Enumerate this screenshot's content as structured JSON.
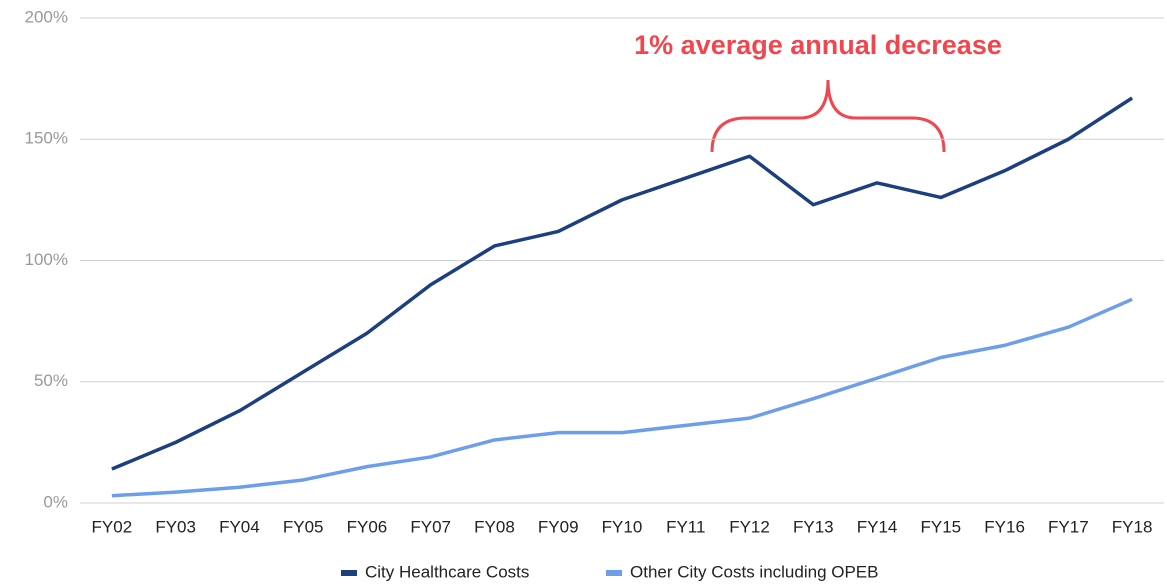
{
  "chart_data": {
    "type": "line",
    "categories": [
      "FY02",
      "FY03",
      "FY04",
      "FY05",
      "FY06",
      "FY07",
      "FY08",
      "FY09",
      "FY10",
      "FY11",
      "FY12",
      "FY13",
      "FY14",
      "FY15",
      "FY16",
      "FY17",
      "FY18"
    ],
    "series": [
      {
        "name": "City Healthcare Costs",
        "color": "#1c3f80",
        "values": [
          14,
          25,
          38,
          54,
          70,
          90,
          106,
          112,
          125,
          134,
          143,
          123,
          132,
          126,
          137,
          150,
          167
        ]
      },
      {
        "name": "Other City Costs including OPEB",
        "color": "#6d9eeb",
        "values": [
          3,
          4.5,
          6.5,
          9.5,
          15,
          19,
          26,
          29,
          29,
          32,
          35,
          43,
          51.5,
          60,
          65,
          72.5,
          84
        ]
      }
    ],
    "ylim": [
      0,
      200
    ],
    "yticks": [
      {
        "value": 0,
        "label": "0%"
      },
      {
        "value": 50,
        "label": "50%"
      },
      {
        "value": 100,
        "label": "100%"
      },
      {
        "value": 150,
        "label": "150%"
      },
      {
        "value": 200,
        "label": "200%"
      }
    ],
    "grid": true,
    "legend": "bottom",
    "annotation": "1% average annual decrease"
  }
}
